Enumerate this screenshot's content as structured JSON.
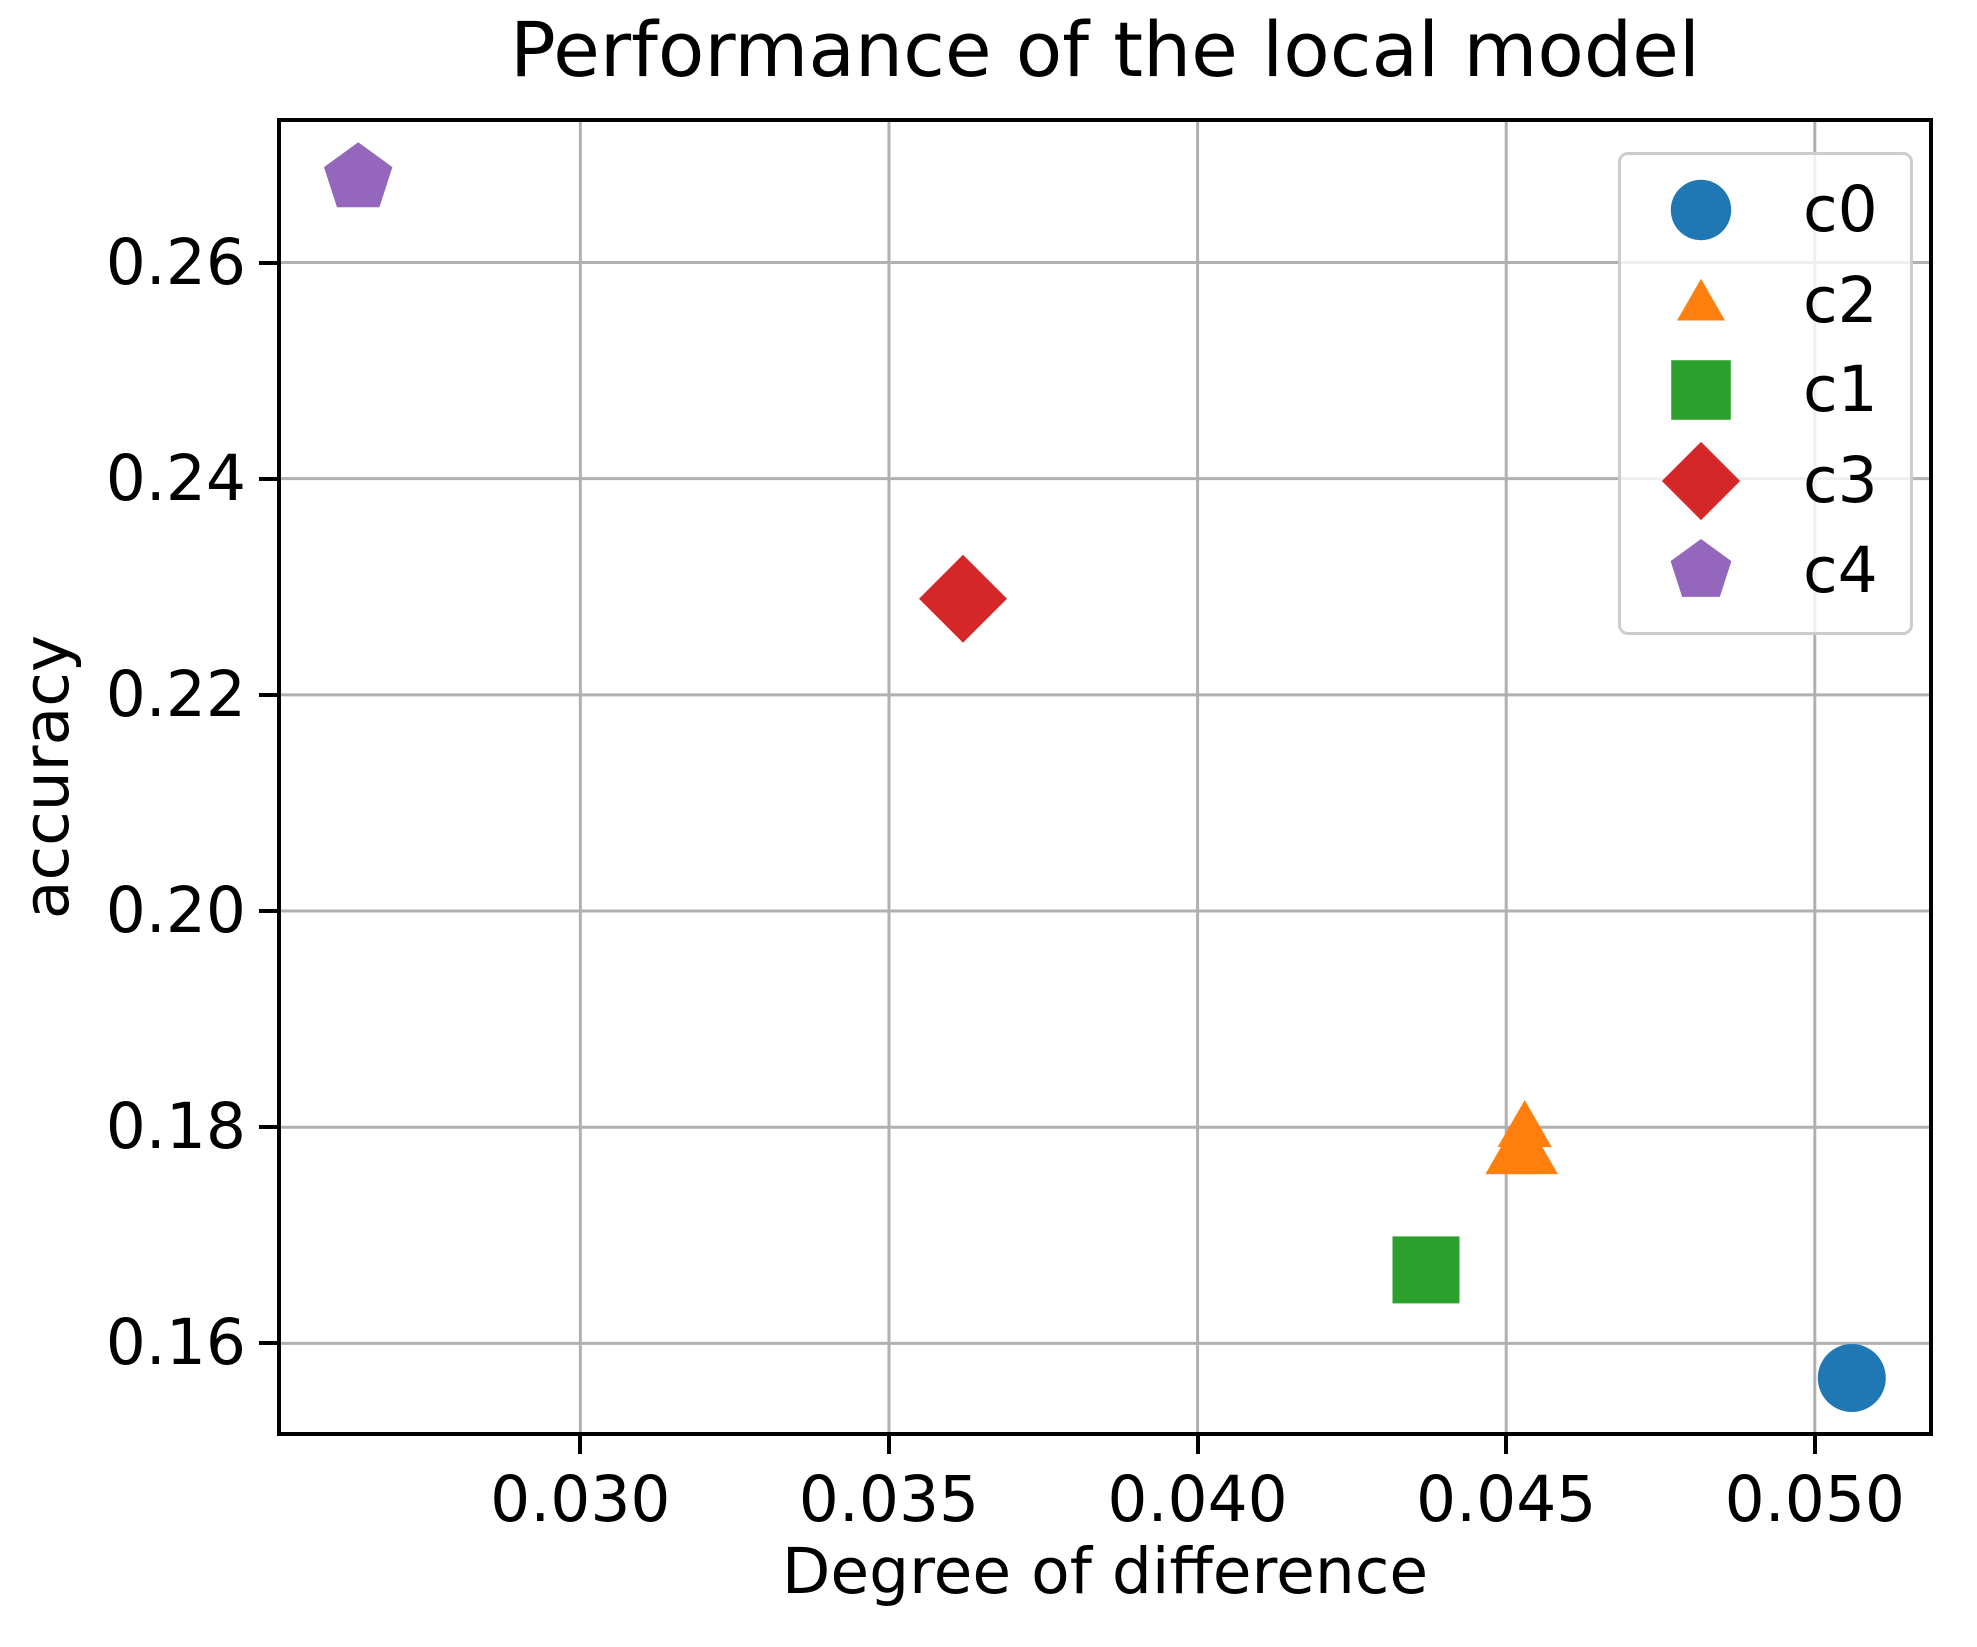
{
  "figure": {
    "background": "#ffffff",
    "grid_color": "#b0b0b0",
    "spine_color": "#000000"
  },
  "chart_data": {
    "type": "scatter",
    "title": "Performance of the local model",
    "xlabel": "Degree of difference",
    "ylabel": "accuracy",
    "xlim": [
      0.02515,
      0.05185
    ],
    "ylim": [
      0.1518,
      0.273
    ],
    "xticks": [
      0.03,
      0.035,
      0.04,
      0.045,
      0.05
    ],
    "xtick_labels": [
      "0.030",
      "0.035",
      "0.040",
      "0.045",
      "0.050"
    ],
    "yticks": [
      0.16,
      0.18,
      0.2,
      0.22,
      0.24,
      0.26
    ],
    "ytick_labels": [
      "0.16",
      "0.18",
      "0.20",
      "0.22",
      "0.24",
      "0.26"
    ],
    "grid": true,
    "legend_position": "upper right",
    "series": [
      {
        "name": "c0",
        "marker": "circle",
        "color": "#1f77b4",
        "points": [
          [
            0.0506,
            0.1568
          ]
        ]
      },
      {
        "name": "c2",
        "marker": "triangle-up",
        "color": "#ff7f0e",
        "points": [
          [
            0.0451,
            0.1777
          ],
          [
            0.0453,
            0.1802
          ],
          [
            0.0454,
            0.1777
          ]
        ]
      },
      {
        "name": "c1",
        "marker": "square",
        "color": "#2ca02c",
        "points": [
          [
            0.0437,
            0.1668
          ]
        ]
      },
      {
        "name": "c3",
        "marker": "diamond",
        "color": "#d62728",
        "points": [
          [
            0.0362,
            0.2289
          ]
        ]
      },
      {
        "name": "c4",
        "marker": "pentagon",
        "color": "#9467bd",
        "points": [
          [
            0.0264,
            0.2678
          ]
        ]
      }
    ]
  },
  "legend": {
    "entries": [
      {
        "label": "c0",
        "marker": "circle",
        "color": "#1f77b4"
      },
      {
        "label": "c2",
        "marker": "triangle-up",
        "color": "#ff7f0e"
      },
      {
        "label": "c1",
        "marker": "square",
        "color": "#2ca02c"
      },
      {
        "label": "c3",
        "marker": "diamond",
        "color": "#d62728"
      },
      {
        "label": "c4",
        "marker": "pentagon",
        "color": "#9467bd"
      }
    ]
  }
}
